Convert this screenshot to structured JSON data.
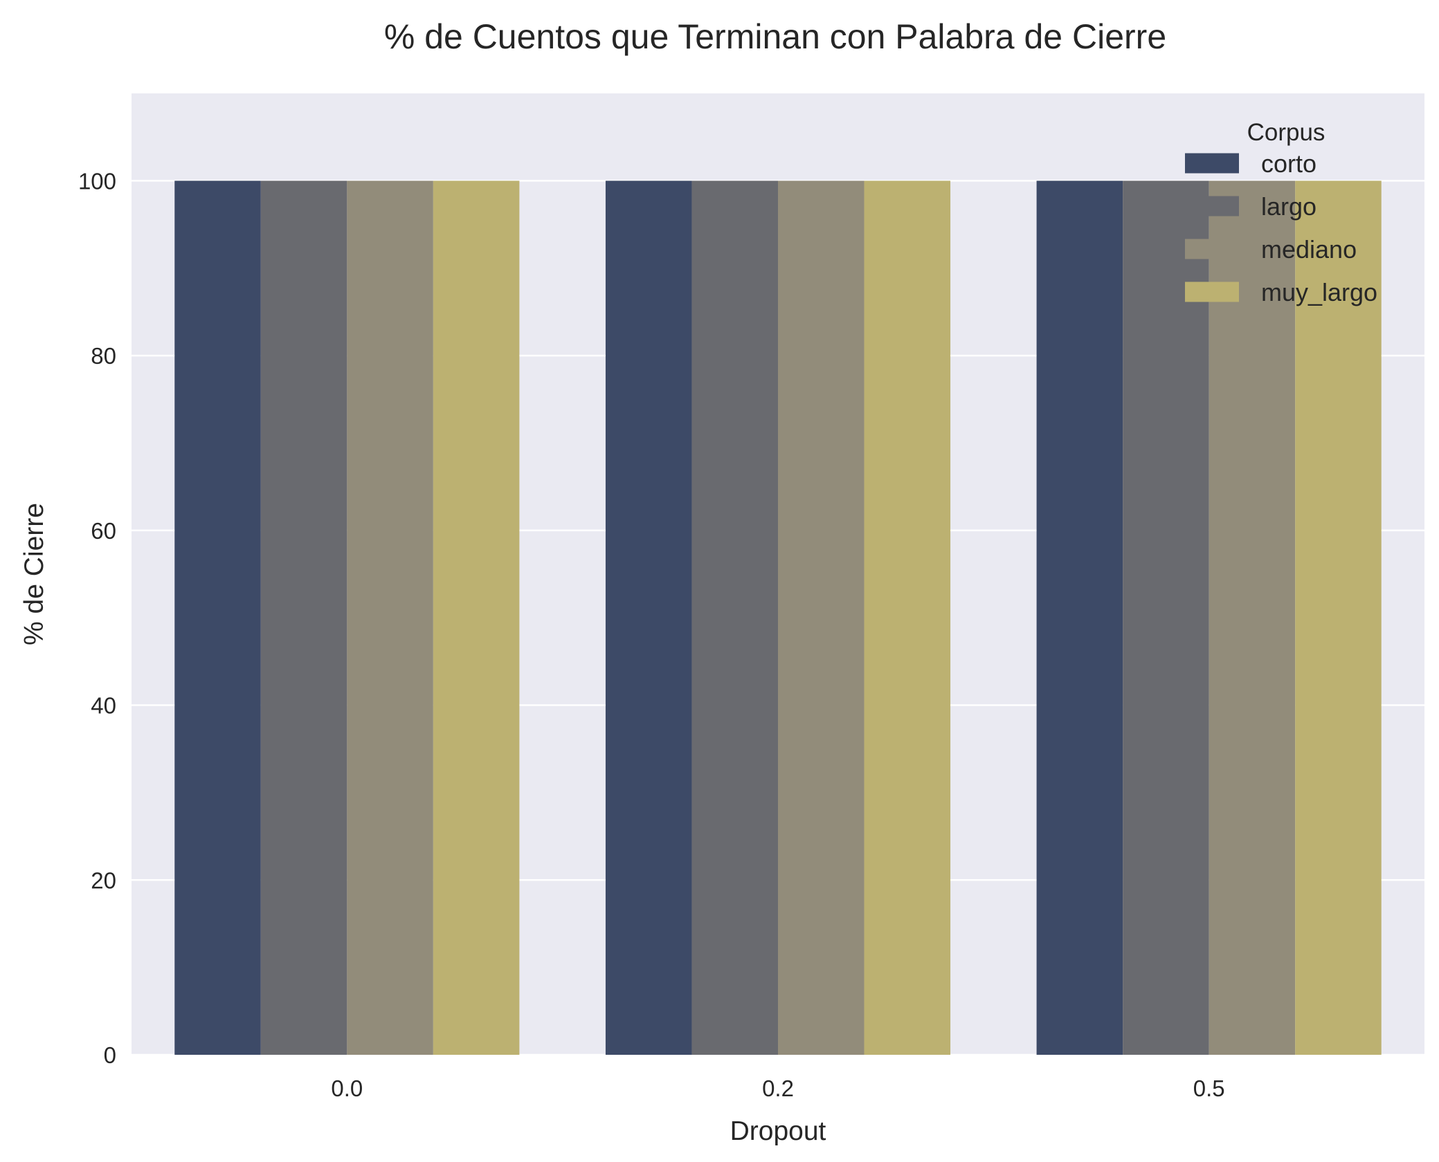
{
  "chart_data": {
    "type": "bar",
    "title": "% de Cuentos que Terminan con Palabra de Cierre",
    "xlabel": "Dropout",
    "ylabel": "% de Cierre",
    "categories": [
      "0.0",
      "0.2",
      "0.5"
    ],
    "series": [
      {
        "name": "corto",
        "color": "#3d4a67",
        "values": [
          100,
          100,
          100
        ]
      },
      {
        "name": "largo",
        "color": "#696a6f",
        "values": [
          100,
          100,
          100
        ]
      },
      {
        "name": "mediano",
        "color": "#928c7a",
        "values": [
          100,
          100,
          100
        ]
      },
      {
        "name": "muy_largo",
        "color": "#bcb171",
        "values": [
          100,
          100,
          100
        ]
      }
    ],
    "ylim": [
      0,
      110
    ],
    "yticks": [
      0,
      20,
      40,
      60,
      80,
      100
    ],
    "grid": true,
    "legend": {
      "title": "Corpus",
      "placement": "top-right"
    },
    "background": "#eaeaf2"
  }
}
